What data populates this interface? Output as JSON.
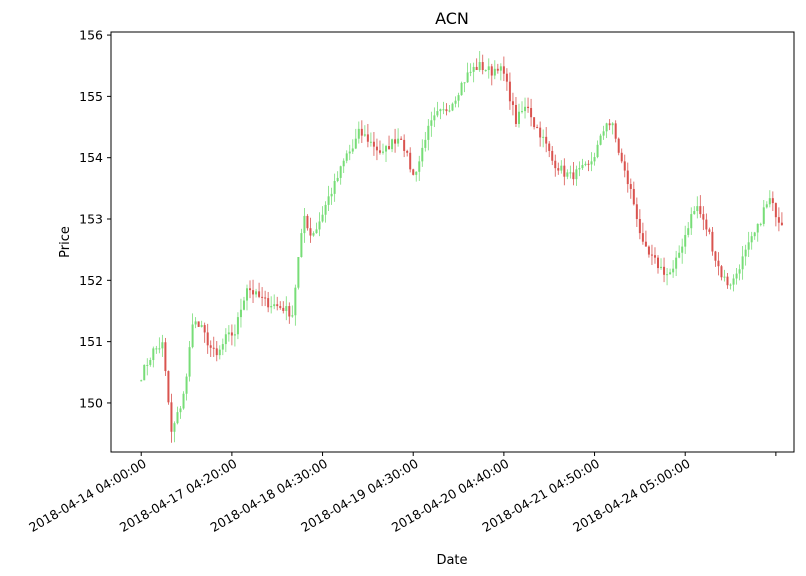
{
  "chart_data": {
    "type": "candlestick",
    "title": "ACN",
    "xlabel": "Date",
    "ylabel": "Price",
    "ylim": [
      149.2,
      156.05
    ],
    "yticks": [
      150,
      151,
      152,
      153,
      154,
      155,
      156
    ],
    "xticks": [
      "2018-04-14 04:00:00",
      "2018-04-17 04:20:00",
      "2018-04-18 04:30:00",
      "2018-04-19 04:30:00",
      "2018-04-20 04:40:00",
      "2018-04-21 04:50:00",
      "2018-04-24 05:00:00",
      ""
    ],
    "xtick_index": [
      0,
      30,
      60,
      90,
      120,
      150,
      180,
      210
    ],
    "x_index_range": [
      -10,
      216
    ],
    "up_color": "#77dd77",
    "down_color": "#d9534f",
    "grid": false,
    "close_path": [
      [
        0,
        150.45
      ],
      [
        4,
        150.85
      ],
      [
        7,
        150.95
      ],
      [
        9,
        150.0
      ],
      [
        10,
        149.5
      ],
      [
        13,
        149.95
      ],
      [
        15,
        150.4
      ],
      [
        17,
        151.35
      ],
      [
        20,
        151.2
      ],
      [
        23,
        150.9
      ],
      [
        25,
        150.75
      ],
      [
        28,
        151.05
      ],
      [
        31,
        151.15
      ],
      [
        33,
        151.55
      ],
      [
        35,
        151.9
      ],
      [
        38,
        151.75
      ],
      [
        41,
        151.65
      ],
      [
        44,
        151.6
      ],
      [
        47,
        151.55
      ],
      [
        50,
        151.45
      ],
      [
        52,
        152.35
      ],
      [
        54,
        153.05
      ],
      [
        56,
        152.75
      ],
      [
        58,
        152.85
      ],
      [
        60,
        153.1
      ],
      [
        62,
        153.35
      ],
      [
        64,
        153.55
      ],
      [
        66,
        153.8
      ],
      [
        68,
        154.05
      ],
      [
        70,
        154.15
      ],
      [
        72,
        154.4
      ],
      [
        74,
        154.35
      ],
      [
        76,
        154.25
      ],
      [
        78,
        154.15
      ],
      [
        80,
        154.05
      ],
      [
        82,
        154.2
      ],
      [
        84,
        154.3
      ],
      [
        86,
        154.35
      ],
      [
        88,
        154.0
      ],
      [
        90,
        153.7
      ],
      [
        92,
        153.95
      ],
      [
        94,
        154.35
      ],
      [
        96,
        154.55
      ],
      [
        98,
        154.7
      ],
      [
        100,
        154.75
      ],
      [
        102,
        154.85
      ],
      [
        104,
        155.0
      ],
      [
        106,
        155.2
      ],
      [
        108,
        155.35
      ],
      [
        110,
        155.45
      ],
      [
        112,
        155.5
      ],
      [
        114,
        155.45
      ],
      [
        116,
        155.4
      ],
      [
        118,
        155.5
      ],
      [
        120,
        155.35
      ],
      [
        122,
        155.0
      ],
      [
        124,
        154.6
      ],
      [
        126,
        154.75
      ],
      [
        128,
        154.85
      ],
      [
        130,
        154.55
      ],
      [
        132,
        154.4
      ],
      [
        134,
        154.2
      ],
      [
        136,
        153.95
      ],
      [
        138,
        153.85
      ],
      [
        140,
        153.75
      ],
      [
        142,
        153.7
      ],
      [
        144,
        153.75
      ],
      [
        146,
        153.8
      ],
      [
        148,
        153.85
      ],
      [
        150,
        154.05
      ],
      [
        152,
        154.3
      ],
      [
        154,
        154.6
      ],
      [
        156,
        154.5
      ],
      [
        158,
        154.1
      ],
      [
        160,
        153.75
      ],
      [
        162,
        153.45
      ],
      [
        164,
        153.05
      ],
      [
        166,
        152.55
      ],
      [
        168,
        152.4
      ],
      [
        170,
        152.3
      ],
      [
        172,
        152.2
      ],
      [
        174,
        152.1
      ],
      [
        176,
        152.15
      ],
      [
        178,
        152.45
      ],
      [
        180,
        152.75
      ],
      [
        182,
        153.05
      ],
      [
        184,
        153.2
      ],
      [
        186,
        152.95
      ],
      [
        188,
        152.75
      ],
      [
        190,
        152.35
      ],
      [
        192,
        152.1
      ],
      [
        194,
        151.95
      ],
      [
        196,
        152.0
      ],
      [
        198,
        152.25
      ],
      [
        200,
        152.45
      ],
      [
        202,
        152.65
      ],
      [
        204,
        152.85
      ],
      [
        206,
        153.15
      ],
      [
        208,
        153.3
      ],
      [
        210,
        153.1
      ],
      [
        212,
        152.9
      ]
    ],
    "candles": []
  }
}
